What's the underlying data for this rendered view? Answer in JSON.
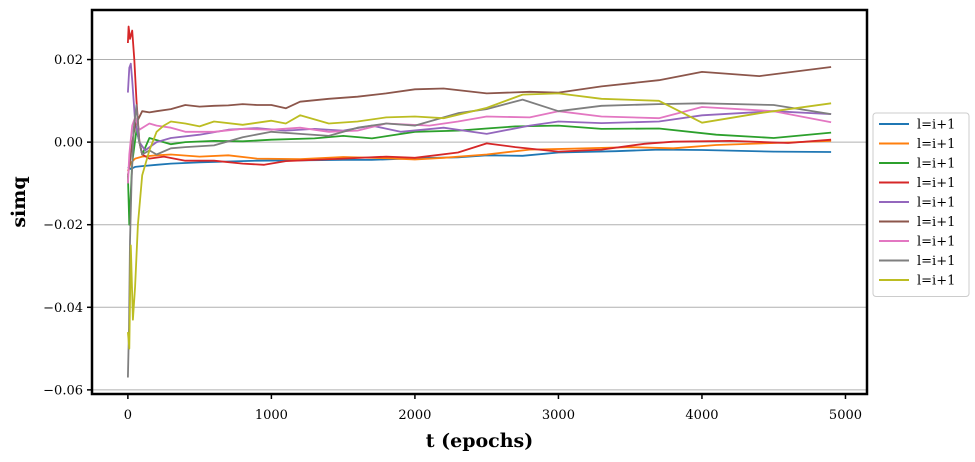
{
  "chart_data": {
    "type": "line",
    "xlabel": "t (epochs)",
    "ylabel": "simq",
    "xlim": [
      -250,
      5150
    ],
    "ylim": [
      -0.061,
      0.032
    ],
    "xticks": [
      0,
      1000,
      2000,
      3000,
      4000,
      5000
    ],
    "xtick_labels": [
      "0",
      "1000",
      "2000",
      "3000",
      "4000",
      "5000"
    ],
    "yticks": [
      -0.06,
      -0.04,
      -0.02,
      0.0,
      0.02
    ],
    "ytick_labels": [
      "−0.06",
      "−0.04",
      "−0.02",
      "0.00",
      "0.02"
    ],
    "grid": "y-major",
    "legend_position": "center-right outside",
    "series": [
      {
        "name": "l=i+1",
        "color": "#1f77b4",
        "points": [
          [
            0,
            -0.006
          ],
          [
            20,
            -0.0065
          ],
          [
            50,
            -0.006
          ],
          [
            100,
            -0.0058
          ],
          [
            200,
            -0.0055
          ],
          [
            300,
            -0.0052
          ],
          [
            500,
            -0.0049
          ],
          [
            700,
            -0.0047
          ],
          [
            900,
            -0.0045
          ],
          [
            1200,
            -0.0044
          ],
          [
            1500,
            -0.0043
          ],
          [
            1700,
            -0.0043
          ],
          [
            2000,
            -0.0039
          ],
          [
            2300,
            -0.0037
          ],
          [
            2500,
            -0.0032
          ],
          [
            2750,
            -0.0033
          ],
          [
            3000,
            -0.0025
          ],
          [
            3400,
            -0.0022
          ],
          [
            3700,
            -0.0018
          ],
          [
            4000,
            -0.0019
          ],
          [
            4500,
            -0.0023
          ],
          [
            4900,
            -0.0024
          ]
        ]
      },
      {
        "name": "l=i+1",
        "color": "#ff7f0e",
        "points": [
          [
            0,
            -0.007
          ],
          [
            20,
            -0.005
          ],
          [
            50,
            -0.004
          ],
          [
            100,
            -0.0035
          ],
          [
            200,
            -0.0032
          ],
          [
            300,
            -0.003
          ],
          [
            500,
            -0.0035
          ],
          [
            700,
            -0.0032
          ],
          [
            900,
            -0.004
          ],
          [
            1200,
            -0.0041
          ],
          [
            1500,
            -0.0036
          ],
          [
            1800,
            -0.0039
          ],
          [
            2000,
            -0.0042
          ],
          [
            2200,
            -0.0038
          ],
          [
            2500,
            -0.003
          ],
          [
            2800,
            -0.0018
          ],
          [
            3100,
            -0.0016
          ],
          [
            3500,
            -0.0012
          ],
          [
            3800,
            -0.0015
          ],
          [
            4100,
            -0.0007
          ],
          [
            4500,
            -0.0002
          ],
          [
            4900,
            0.0003
          ]
        ]
      },
      {
        "name": "l=i+1",
        "color": "#2ca02c",
        "points": [
          [
            0,
            -0.008
          ],
          [
            10,
            -0.02
          ],
          [
            30,
            -0.005
          ],
          [
            60,
            0.003
          ],
          [
            100,
            -0.003
          ],
          [
            150,
            0.001
          ],
          [
            200,
            0.0005
          ],
          [
            300,
            -0.0005
          ],
          [
            400,
            0.0
          ],
          [
            600,
            0.0003
          ],
          [
            800,
            0.0002
          ],
          [
            1000,
            0.0006
          ],
          [
            1300,
            0.0009
          ],
          [
            1500,
            0.0015
          ],
          [
            1700,
            0.0009
          ],
          [
            2000,
            0.0025
          ],
          [
            2300,
            0.0028
          ],
          [
            2700,
            0.0038
          ],
          [
            3000,
            0.004
          ],
          [
            3300,
            0.0032
          ],
          [
            3700,
            0.0033
          ],
          [
            4100,
            0.0018
          ],
          [
            4500,
            0.001
          ],
          [
            4900,
            0.0023
          ]
        ]
      },
      {
        "name": "l=i+1",
        "color": "#d62728",
        "points": [
          [
            0,
            0.024
          ],
          [
            5,
            0.028
          ],
          [
            15,
            0.025
          ],
          [
            30,
            0.027
          ],
          [
            45,
            0.02
          ],
          [
            60,
            0.01
          ],
          [
            80,
            0.0
          ],
          [
            100,
            -0.003
          ],
          [
            150,
            -0.004
          ],
          [
            250,
            -0.0035
          ],
          [
            400,
            -0.0045
          ],
          [
            600,
            -0.0045
          ],
          [
            800,
            -0.0052
          ],
          [
            950,
            -0.0055
          ],
          [
            1100,
            -0.0046
          ],
          [
            1300,
            -0.0043
          ],
          [
            1500,
            -0.004
          ],
          [
            1800,
            -0.0035
          ],
          [
            2000,
            -0.0038
          ],
          [
            2300,
            -0.0025
          ],
          [
            2500,
            -0.0003
          ],
          [
            2700,
            -0.0012
          ],
          [
            3000,
            -0.0023
          ],
          [
            3300,
            -0.0018
          ],
          [
            3600,
            -0.0004
          ],
          [
            3800,
            0.0001
          ],
          [
            4200,
            0.0003
          ],
          [
            4600,
            -0.0002
          ],
          [
            4900,
            0.0006
          ]
        ]
      },
      {
        "name": "l=i+1",
        "color": "#9467bd",
        "points": [
          [
            0,
            0.012
          ],
          [
            10,
            0.018
          ],
          [
            20,
            0.019
          ],
          [
            30,
            0.015
          ],
          [
            50,
            0.005
          ],
          [
            80,
            0.0
          ],
          [
            120,
            -0.002
          ],
          [
            200,
            0.0
          ],
          [
            300,
            0.001
          ],
          [
            500,
            0.0018
          ],
          [
            700,
            0.003
          ],
          [
            900,
            0.0034
          ],
          [
            1100,
            0.0028
          ],
          [
            1300,
            0.0032
          ],
          [
            1500,
            0.0028
          ],
          [
            1700,
            0.004
          ],
          [
            1900,
            0.0025
          ],
          [
            2200,
            0.0035
          ],
          [
            2500,
            0.002
          ],
          [
            2800,
            0.004
          ],
          [
            3000,
            0.005
          ],
          [
            3300,
            0.0046
          ],
          [
            3700,
            0.005
          ],
          [
            4000,
            0.0065
          ],
          [
            4500,
            0.0075
          ],
          [
            4900,
            0.0068
          ]
        ]
      },
      {
        "name": "l=i+1",
        "color": "#8c564b",
        "points": [
          [
            0,
            -0.008
          ],
          [
            10,
            -0.006
          ],
          [
            30,
            0.0
          ],
          [
            50,
            0.004
          ],
          [
            100,
            0.0075
          ],
          [
            150,
            0.0072
          ],
          [
            200,
            0.0075
          ],
          [
            300,
            0.008
          ],
          [
            400,
            0.009
          ],
          [
            500,
            0.0086
          ],
          [
            600,
            0.0088
          ],
          [
            700,
            0.0089
          ],
          [
            800,
            0.0092
          ],
          [
            900,
            0.009
          ],
          [
            1000,
            0.009
          ],
          [
            1100,
            0.0082
          ],
          [
            1200,
            0.0098
          ],
          [
            1400,
            0.0105
          ],
          [
            1600,
            0.011
          ],
          [
            1800,
            0.0118
          ],
          [
            2000,
            0.0128
          ],
          [
            2200,
            0.013
          ],
          [
            2500,
            0.0118
          ],
          [
            2800,
            0.0122
          ],
          [
            3000,
            0.012
          ],
          [
            3300,
            0.0135
          ],
          [
            3700,
            0.015
          ],
          [
            4000,
            0.017
          ],
          [
            4400,
            0.016
          ],
          [
            4900,
            0.0182
          ]
        ]
      },
      {
        "name": "l=i+1",
        "color": "#e377c2",
        "points": [
          [
            0,
            -0.01
          ],
          [
            10,
            -0.003
          ],
          [
            30,
            0.004
          ],
          [
            50,
            0.006
          ],
          [
            80,
            0.003
          ],
          [
            150,
            0.0045
          ],
          [
            200,
            0.004
          ],
          [
            300,
            0.0035
          ],
          [
            400,
            0.0025
          ],
          [
            600,
            0.0025
          ],
          [
            800,
            0.0032
          ],
          [
            1000,
            0.003
          ],
          [
            1200,
            0.0035
          ],
          [
            1400,
            0.0025
          ],
          [
            1600,
            0.0028
          ],
          [
            1800,
            0.0045
          ],
          [
            2100,
            0.004
          ],
          [
            2300,
            0.005
          ],
          [
            2500,
            0.0062
          ],
          [
            2800,
            0.006
          ],
          [
            3000,
            0.0075
          ],
          [
            3300,
            0.0062
          ],
          [
            3700,
            0.0058
          ],
          [
            4000,
            0.0085
          ],
          [
            4500,
            0.0075
          ],
          [
            4900,
            0.0048
          ]
        ]
      },
      {
        "name": "l=i+1",
        "color": "#7f7f7f",
        "points": [
          [
            0,
            -0.057
          ],
          [
            8,
            -0.045
          ],
          [
            15,
            -0.024
          ],
          [
            25,
            -0.01
          ],
          [
            40,
            0.003
          ],
          [
            60,
            0.009
          ],
          [
            80,
            0.0
          ],
          [
            100,
            -0.003
          ],
          [
            150,
            -0.002
          ],
          [
            200,
            -0.003
          ],
          [
            300,
            -0.0015
          ],
          [
            400,
            -0.0012
          ],
          [
            600,
            -0.0008
          ],
          [
            800,
            0.0012
          ],
          [
            1000,
            0.0025
          ],
          [
            1200,
            0.002
          ],
          [
            1400,
            0.0015
          ],
          [
            1600,
            0.0035
          ],
          [
            1800,
            0.0045
          ],
          [
            2000,
            0.004
          ],
          [
            2300,
            0.007
          ],
          [
            2500,
            0.008
          ],
          [
            2750,
            0.0103
          ],
          [
            3000,
            0.0075
          ],
          [
            3300,
            0.0088
          ],
          [
            3700,
            0.0092
          ],
          [
            4000,
            0.0094
          ],
          [
            4500,
            0.009
          ],
          [
            4900,
            0.0068
          ]
        ]
      },
      {
        "name": "l=i+1",
        "color": "#bcbd22",
        "points": [
          [
            0,
            -0.046
          ],
          [
            10,
            -0.05
          ],
          [
            20,
            -0.025
          ],
          [
            35,
            -0.043
          ],
          [
            50,
            -0.035
          ],
          [
            70,
            -0.02
          ],
          [
            100,
            -0.008
          ],
          [
            150,
            -0.002
          ],
          [
            200,
            0.0025
          ],
          [
            250,
            0.004
          ],
          [
            300,
            0.005
          ],
          [
            400,
            0.0045
          ],
          [
            500,
            0.0038
          ],
          [
            600,
            0.005
          ],
          [
            800,
            0.0042
          ],
          [
            1000,
            0.0052
          ],
          [
            1100,
            0.0045
          ],
          [
            1200,
            0.0065
          ],
          [
            1400,
            0.0045
          ],
          [
            1600,
            0.005
          ],
          [
            1800,
            0.006
          ],
          [
            2000,
            0.0062
          ],
          [
            2200,
            0.0058
          ],
          [
            2500,
            0.0083
          ],
          [
            2750,
            0.0115
          ],
          [
            3000,
            0.0118
          ],
          [
            3300,
            0.0105
          ],
          [
            3700,
            0.01
          ],
          [
            4000,
            0.0047
          ],
          [
            4400,
            0.007
          ],
          [
            4900,
            0.0094
          ]
        ]
      }
    ]
  }
}
